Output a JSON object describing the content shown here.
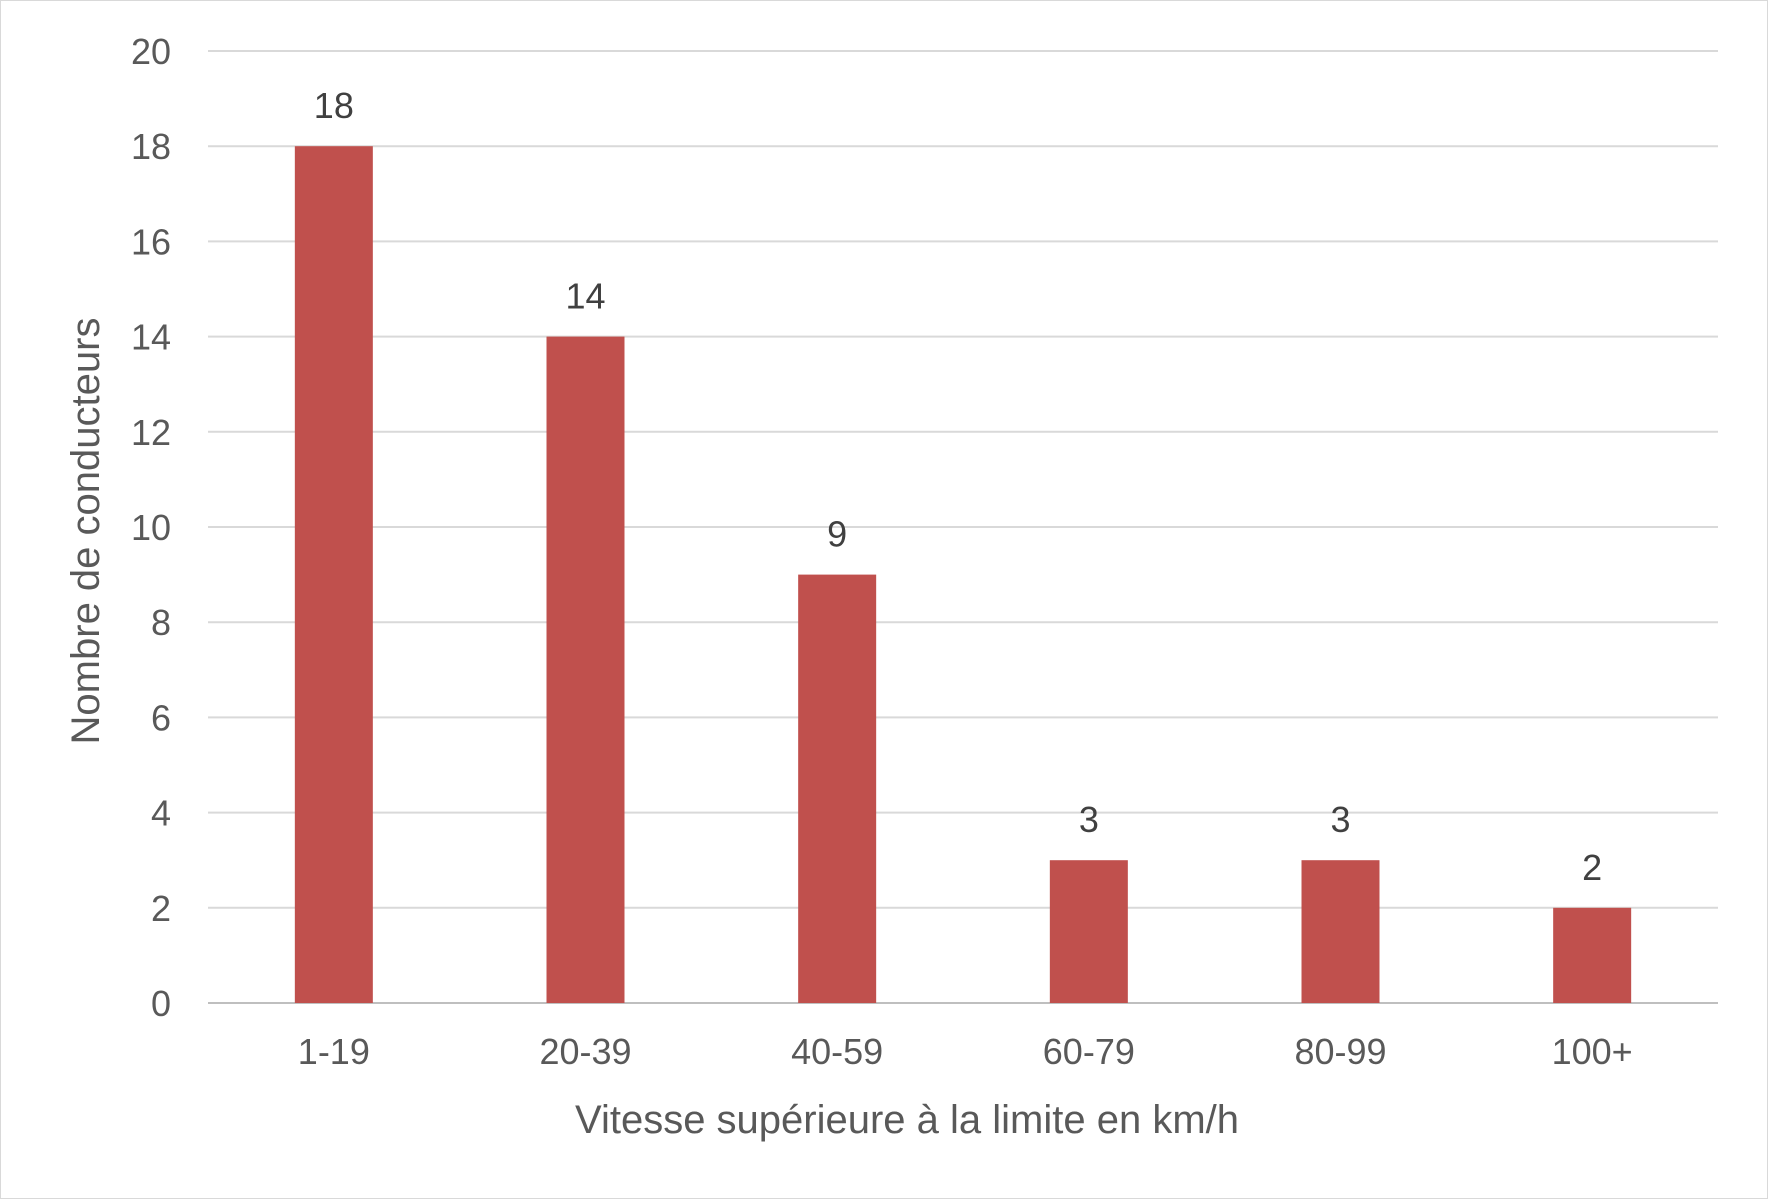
{
  "chart_data": {
    "type": "bar",
    "title": "",
    "xlabel": "Vitesse supérieure à la limite en km/h",
    "ylabel": "Nombre de conducteurs",
    "categories": [
      "1-19",
      "20-39",
      "40-59",
      "60-79",
      "80-99",
      "100+"
    ],
    "values": [
      18,
      14,
      9,
      3,
      3,
      2
    ],
    "data_labels": [
      "18",
      "14",
      "9",
      "3",
      "3",
      "2"
    ],
    "ylim": [
      0,
      20
    ],
    "yticks": [
      0,
      2,
      4,
      6,
      8,
      10,
      12,
      14,
      16,
      18,
      20
    ],
    "ytick_labels": [
      "0",
      "2",
      "4",
      "6",
      "8",
      "10",
      "12",
      "14",
      "16",
      "18",
      "20"
    ],
    "grid": true,
    "legend": "none",
    "bar_color": "#c0504d"
  }
}
